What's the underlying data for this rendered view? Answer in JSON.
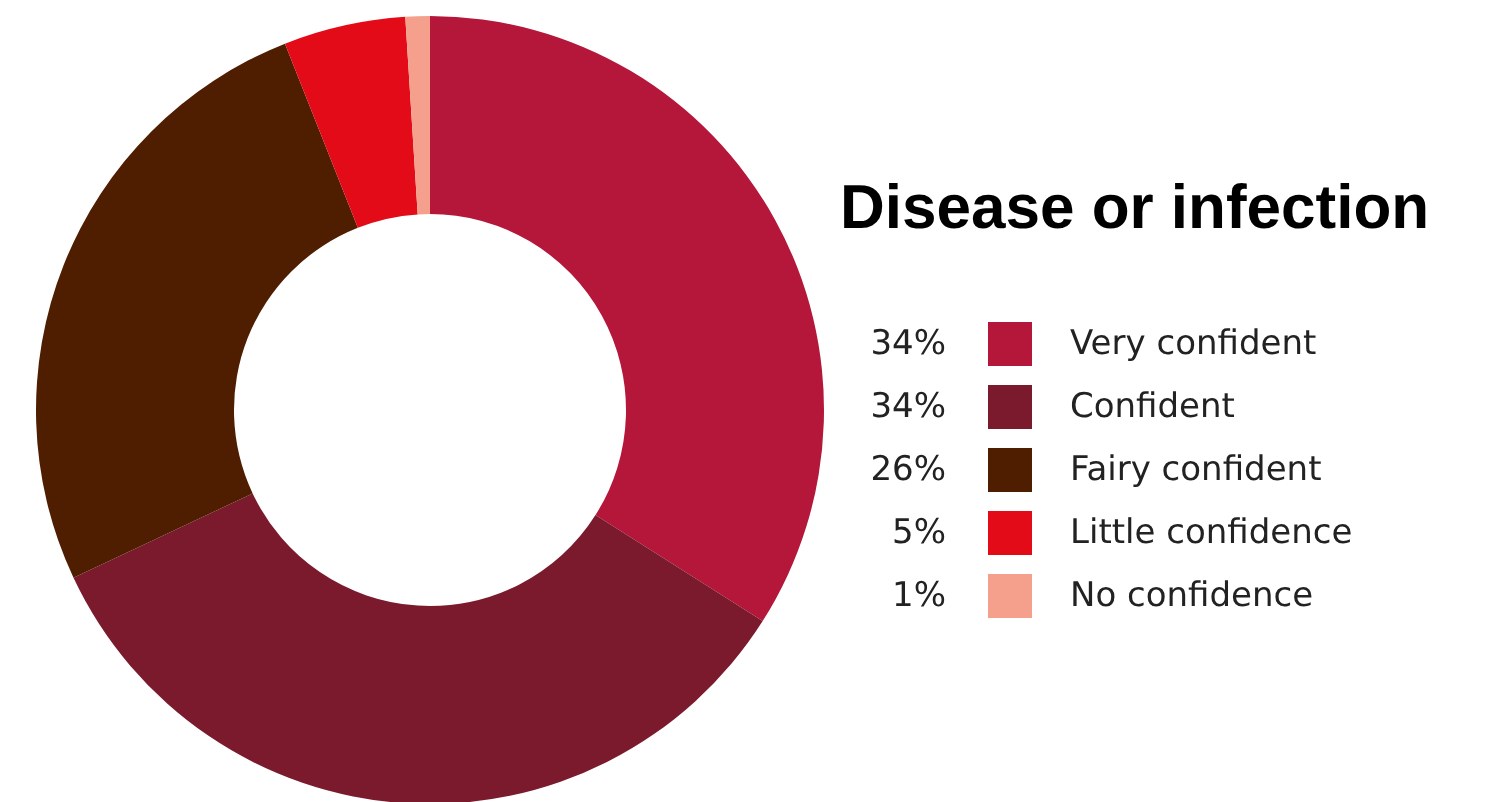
{
  "chart_data": {
    "type": "donut",
    "title": "Disease or infection",
    "legend": "right",
    "categories": [
      "Very confident",
      "Confident",
      "Fairy confident",
      "Little confidence",
      "No confidence"
    ],
    "values": [
      34,
      34,
      26,
      5,
      1
    ],
    "value_labels": [
      "34%",
      "34%",
      "26%",
      "5%",
      "1%"
    ],
    "colors": [
      "#b5173a",
      "#7a1a2c",
      "#4f1e00",
      "#e30b17",
      "#f4a08c"
    ]
  }
}
